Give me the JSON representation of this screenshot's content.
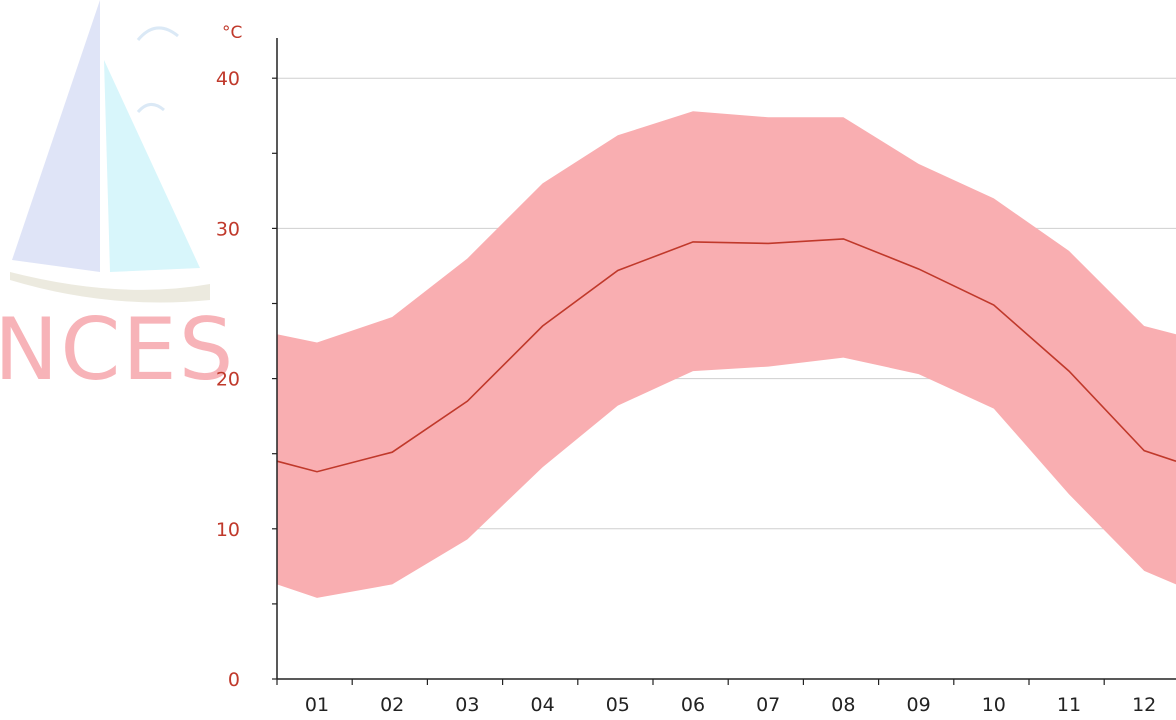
{
  "watermark": {
    "text": "NCES"
  },
  "colors": {
    "band": "#f9aeb1",
    "line": "#c0392b",
    "axis": "#222222",
    "grid": "#cfcfcf",
    "tick_label": "#c0392b"
  },
  "chart_data": {
    "type": "area",
    "unit_label": "°C",
    "categories": [
      "01",
      "02",
      "03",
      "04",
      "05",
      "06",
      "07",
      "08",
      "09",
      "10",
      "11",
      "12"
    ],
    "ylim": [
      0,
      42
    ],
    "y_ticks": [
      0,
      10,
      20,
      30,
      40
    ],
    "grid": true,
    "series": [
      {
        "values": [
          13.8,
          15.1,
          18.5,
          23.5,
          27.2,
          29.1,
          29.0,
          29.3,
          27.3,
          24.9,
          20.5,
          15.2
        ]
      }
    ],
    "band": {
      "upper": [
        22.4,
        24.1,
        28.0,
        33.0,
        36.2,
        37.8,
        37.4,
        37.4,
        34.3,
        32.0,
        28.5,
        23.5
      ],
      "lower": [
        5.4,
        6.3,
        9.3,
        14.1,
        18.2,
        20.5,
        20.8,
        21.4,
        20.3,
        18.0,
        12.3,
        7.2
      ]
    }
  }
}
